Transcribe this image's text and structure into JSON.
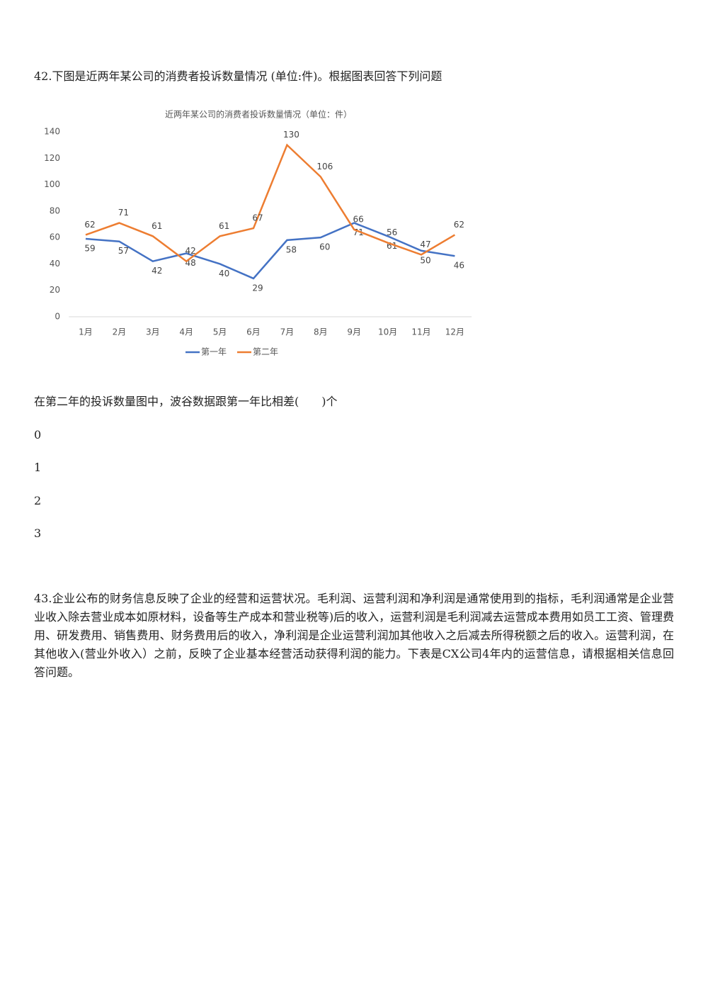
{
  "question42": "42.下图是近两年某公司的消费者投诉数量情况 (单位:件)。根据图表回答下列问题",
  "chart_data": {
    "type": "line",
    "title": "近两年某公司的消费者投诉数量情况（单位：件）",
    "categories": [
      "1月",
      "2月",
      "3月",
      "4月",
      "5月",
      "6月",
      "7月",
      "8月",
      "9月",
      "10月",
      "11月",
      "12月"
    ],
    "series": [
      {
        "name": "第一年",
        "color": "#4472c4",
        "values": [
          59,
          57,
          42,
          48,
          40,
          29,
          58,
          60,
          71,
          61,
          50,
          46
        ]
      },
      {
        "name": "第二年",
        "color": "#ed7d31",
        "values": [
          62,
          71,
          61,
          42,
          61,
          67,
          130,
          106,
          66,
          56,
          47,
          62
        ]
      }
    ],
    "ylim": [
      0,
      140
    ],
    "yticks": [
      0,
      20,
      40,
      60,
      80,
      100,
      120,
      140
    ],
    "data_labels": true
  },
  "question42_prompt": "在第二年的投诉数量图中，波谷数据跟第一年比相差(　　)个",
  "options": [
    "0",
    "1",
    "2",
    "3"
  ],
  "question43": "43.企业公布的财务信息反映了企业的经营和运营状况。毛利润、运营利润和净利润是通常使用到的指标，毛利润通常是企业营业收入除去营业成本如原材料，设备等生产成本和营业税等)后的收入，运营利润是毛利润减去运营成本费用如员工工资、管理费用、研发费用、销售费用、财务费用后的收入，净利润是企业运营利润加其他收入之后减去所得税额之后的收入。运营利润，在其他收入(营业外收入）之前，反映了企业基本经营活动获得利润的能力。下表是CX公司4年内的运营信息，请根据相关信息回答问题。"
}
